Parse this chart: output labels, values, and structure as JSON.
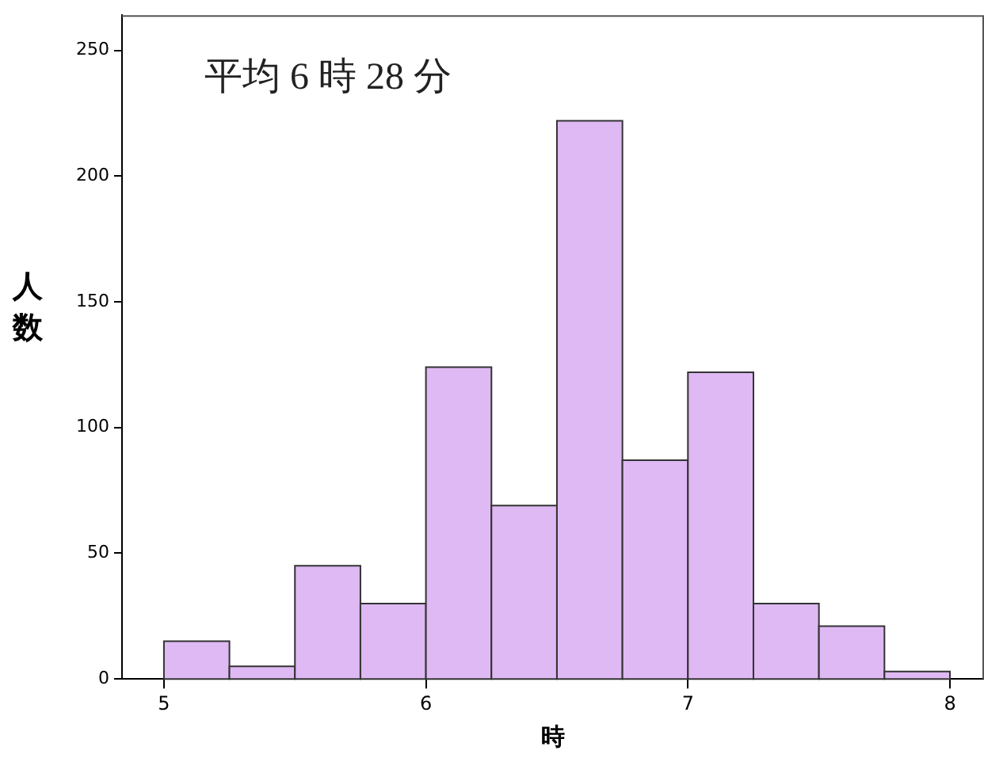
{
  "chart_data": {
    "type": "histogram",
    "xlabel": "時",
    "ylabel": "人数",
    "annotations": [
      "平均 6 時 28 分"
    ],
    "bins": [
      5,
      5.25,
      5.5,
      5.75,
      6,
      6.25,
      6.5,
      6.75,
      7,
      7.25,
      7.5,
      7.75,
      8
    ],
    "values": [
      15,
      5,
      45,
      30,
      124,
      69,
      222,
      87,
      122,
      30,
      21,
      3
    ],
    "color": "#dfb9f3",
    "xlim": [
      4.84,
      8.13
    ],
    "xticks": [
      5,
      6,
      7,
      8
    ],
    "ylim": [
      0,
      264
    ],
    "yticks": [
      0,
      50,
      100,
      150,
      200,
      250
    ],
    "grid": false,
    "legend": false
  }
}
